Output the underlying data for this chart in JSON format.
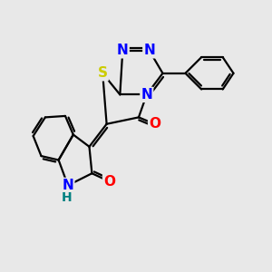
{
  "background_color": "#e8e8e8",
  "atom_colors": {
    "N": "#0000ff",
    "O": "#ff0000",
    "S": "#cccc00",
    "NH": "#008080"
  },
  "bond_color": "#000000",
  "bond_width": 1.6,
  "font_size": 11
}
